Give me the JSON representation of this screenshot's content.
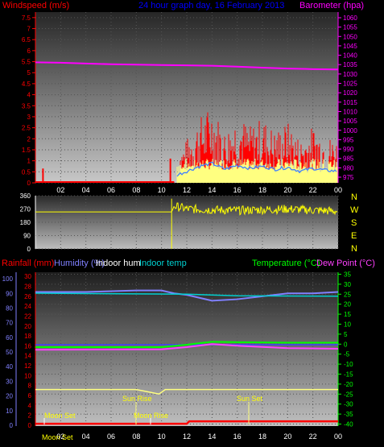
{
  "top": {
    "title_left": "Windspeed (m/s)",
    "title_center": "24 hour graph day, 16 February 2013",
    "title_right": "Barometer (hpa)",
    "colors": {
      "wind": "#ff0000",
      "gust_fill": "#ffff80",
      "wind_avg": "#4080ff",
      "baro": "#ff00ff",
      "bg_top": "#3a3a3a",
      "bg_bottom": "#bdbdbd"
    }
  },
  "middle": {
    "direction_labels": [
      "N",
      "W",
      "S",
      "E",
      "N"
    ],
    "color": "#ffff00"
  },
  "bottom": {
    "title_rainfall": "Rainfall (mm)",
    "title_humidity": "Humidity (%)",
    "title_indoor_hum": "Indoor hum",
    "title_indoor_temp": "Indoor temp",
    "title_temperature": "Temperature (°C)",
    "title_dewpoint": "Dew Point (°C)",
    "events": {
      "moon_set_1": "Moon Set",
      "sun_rise": "Sun Rise",
      "moon_rise": "Moon Rise",
      "sun_set": "Sun Set",
      "moon_set_axis": "Moon Set"
    },
    "colors": {
      "rain": "#ff0000",
      "humidity": "#8080ff",
      "indoor_hum": "#ffffff",
      "indoor_temp": "#00d0d0",
      "temperature": "#00ff00",
      "dewpoint": "#ff40ff",
      "pressure_line": "#4040ff",
      "rain_accum": "#ffff80"
    }
  },
  "chart_data": [
    {
      "type": "line",
      "title": "24 hour graph day, 16 February 2013",
      "x_ticks": [
        "02",
        "04",
        "06",
        "08",
        "10",
        "12",
        "14",
        "16",
        "18",
        "20",
        "22",
        "00"
      ],
      "y_left_label": "Windspeed (m/s)",
      "y_left_ticks": [
        "0",
        "0.5",
        "1",
        "1.5",
        "2",
        "2.5",
        "3",
        "3.5",
        "4",
        "4.5",
        "5",
        "5.5",
        "6",
        "6.5",
        "7",
        "7.5"
      ],
      "ylim_left": [
        0,
        7.75
      ],
      "y_right_label": "Barometer (hpa)",
      "y_right_ticks": [
        "975",
        "980",
        "985",
        "990",
        "995",
        "1000",
        "1005",
        "1010",
        "1015",
        "1020",
        "1025",
        "1030",
        "1035",
        "1040",
        "1045",
        "1050",
        "1055",
        "1060"
      ],
      "ylim_right": [
        972,
        1063
      ],
      "series": [
        {
          "name": "Barometer (hpa)",
          "x": [
            0,
            2,
            4,
            6,
            8,
            10,
            12,
            14,
            16,
            18,
            20,
            22,
            24
          ],
          "values": [
            1036.2,
            1036.0,
            1035.6,
            1035.2,
            1035.0,
            1034.8,
            1034.6,
            1034.4,
            1033.9,
            1033.4,
            1032.9,
            1032.6,
            1032.4
          ]
        },
        {
          "name": "Windspeed (m/s)",
          "x": [
            0,
            1,
            2,
            4,
            6,
            8,
            10,
            11,
            12,
            13,
            14,
            15,
            16,
            17,
            18,
            19,
            20,
            21,
            22,
            23,
            24
          ],
          "values": [
            0,
            0,
            0,
            0,
            0,
            0,
            0,
            0.5,
            1.0,
            1.5,
            1.8,
            1.2,
            1.6,
            1.3,
            1.5,
            1.2,
            1.4,
            1.0,
            1.3,
            1.1,
            1.0
          ]
        }
      ]
    },
    {
      "type": "line",
      "y_left_ticks": [
        "0",
        "90",
        "180",
        "270",
        "360"
      ],
      "ylim": [
        0,
        360
      ],
      "series": [
        {
          "name": "Wind direction",
          "x": [
            0,
            2,
            4,
            6,
            8,
            10,
            10.8,
            11,
            12,
            14,
            16,
            18,
            20,
            22,
            24
          ],
          "values": [
            250,
            250,
            250,
            250,
            250,
            250,
            250,
            290,
            270,
            265,
            260,
            265,
            270,
            262,
            255
          ]
        }
      ]
    },
    {
      "type": "line",
      "x_ticks": [
        "02",
        "04",
        "06",
        "08",
        "10",
        "12",
        "14",
        "16",
        "18",
        "20",
        "22",
        "00"
      ],
      "y_rain_ticks": [
        "0",
        "2",
        "4",
        "6",
        "8",
        "10",
        "12",
        "14",
        "16",
        "18",
        "20",
        "22",
        "24",
        "26",
        "28",
        "30"
      ],
      "y_hum_ticks": [
        "0",
        "10",
        "20",
        "30",
        "40",
        "50",
        "60",
        "70",
        "80",
        "90",
        "100"
      ],
      "y_temp_ticks": [
        "-40",
        "-35",
        "-30",
        "-25",
        "-20",
        "-15",
        "-10",
        "-5",
        "0",
        "5",
        "10",
        "15",
        "20",
        "25",
        "30",
        "35"
      ],
      "ylim_temp": [
        -41,
        36
      ],
      "series": [
        {
          "name": "Humidity (%)",
          "x": [
            0,
            4,
            8,
            10,
            11,
            12,
            13,
            14,
            16,
            18,
            20,
            22,
            24
          ],
          "values": [
            91,
            91,
            92,
            92,
            90,
            89,
            87,
            85,
            86,
            88,
            90,
            90,
            91
          ]
        },
        {
          "name": "Indoor temp",
          "x": [
            0,
            12,
            16,
            24
          ],
          "values": [
            25.5,
            25.0,
            24.2,
            24.0
          ]
        },
        {
          "name": "Temperature (°C)",
          "x": [
            0,
            10,
            12,
            14,
            16,
            20,
            24
          ],
          "values": [
            -1.5,
            -1.5,
            -0.3,
            1.2,
            1.0,
            0.7,
            0.7
          ]
        },
        {
          "name": "Dew Point (°C)",
          "x": [
            0,
            10,
            12,
            14,
            16,
            20,
            24
          ],
          "values": [
            -2.8,
            -2.6,
            -1.5,
            0.0,
            -0.8,
            -2.0,
            -2.3
          ]
        },
        {
          "name": "Rainfall (mm)",
          "x": [
            0,
            8,
            9.8,
            10.3,
            11,
            24
          ],
          "values": [
            7.2,
            7.2,
            6.3,
            7.2,
            7.2,
            7.2
          ]
        },
        {
          "name": "Rain accum",
          "x": [
            0,
            12,
            12.2,
            24
          ],
          "values": [
            0.3,
            0.3,
            0.8,
            0.8
          ]
        }
      ]
    }
  ]
}
